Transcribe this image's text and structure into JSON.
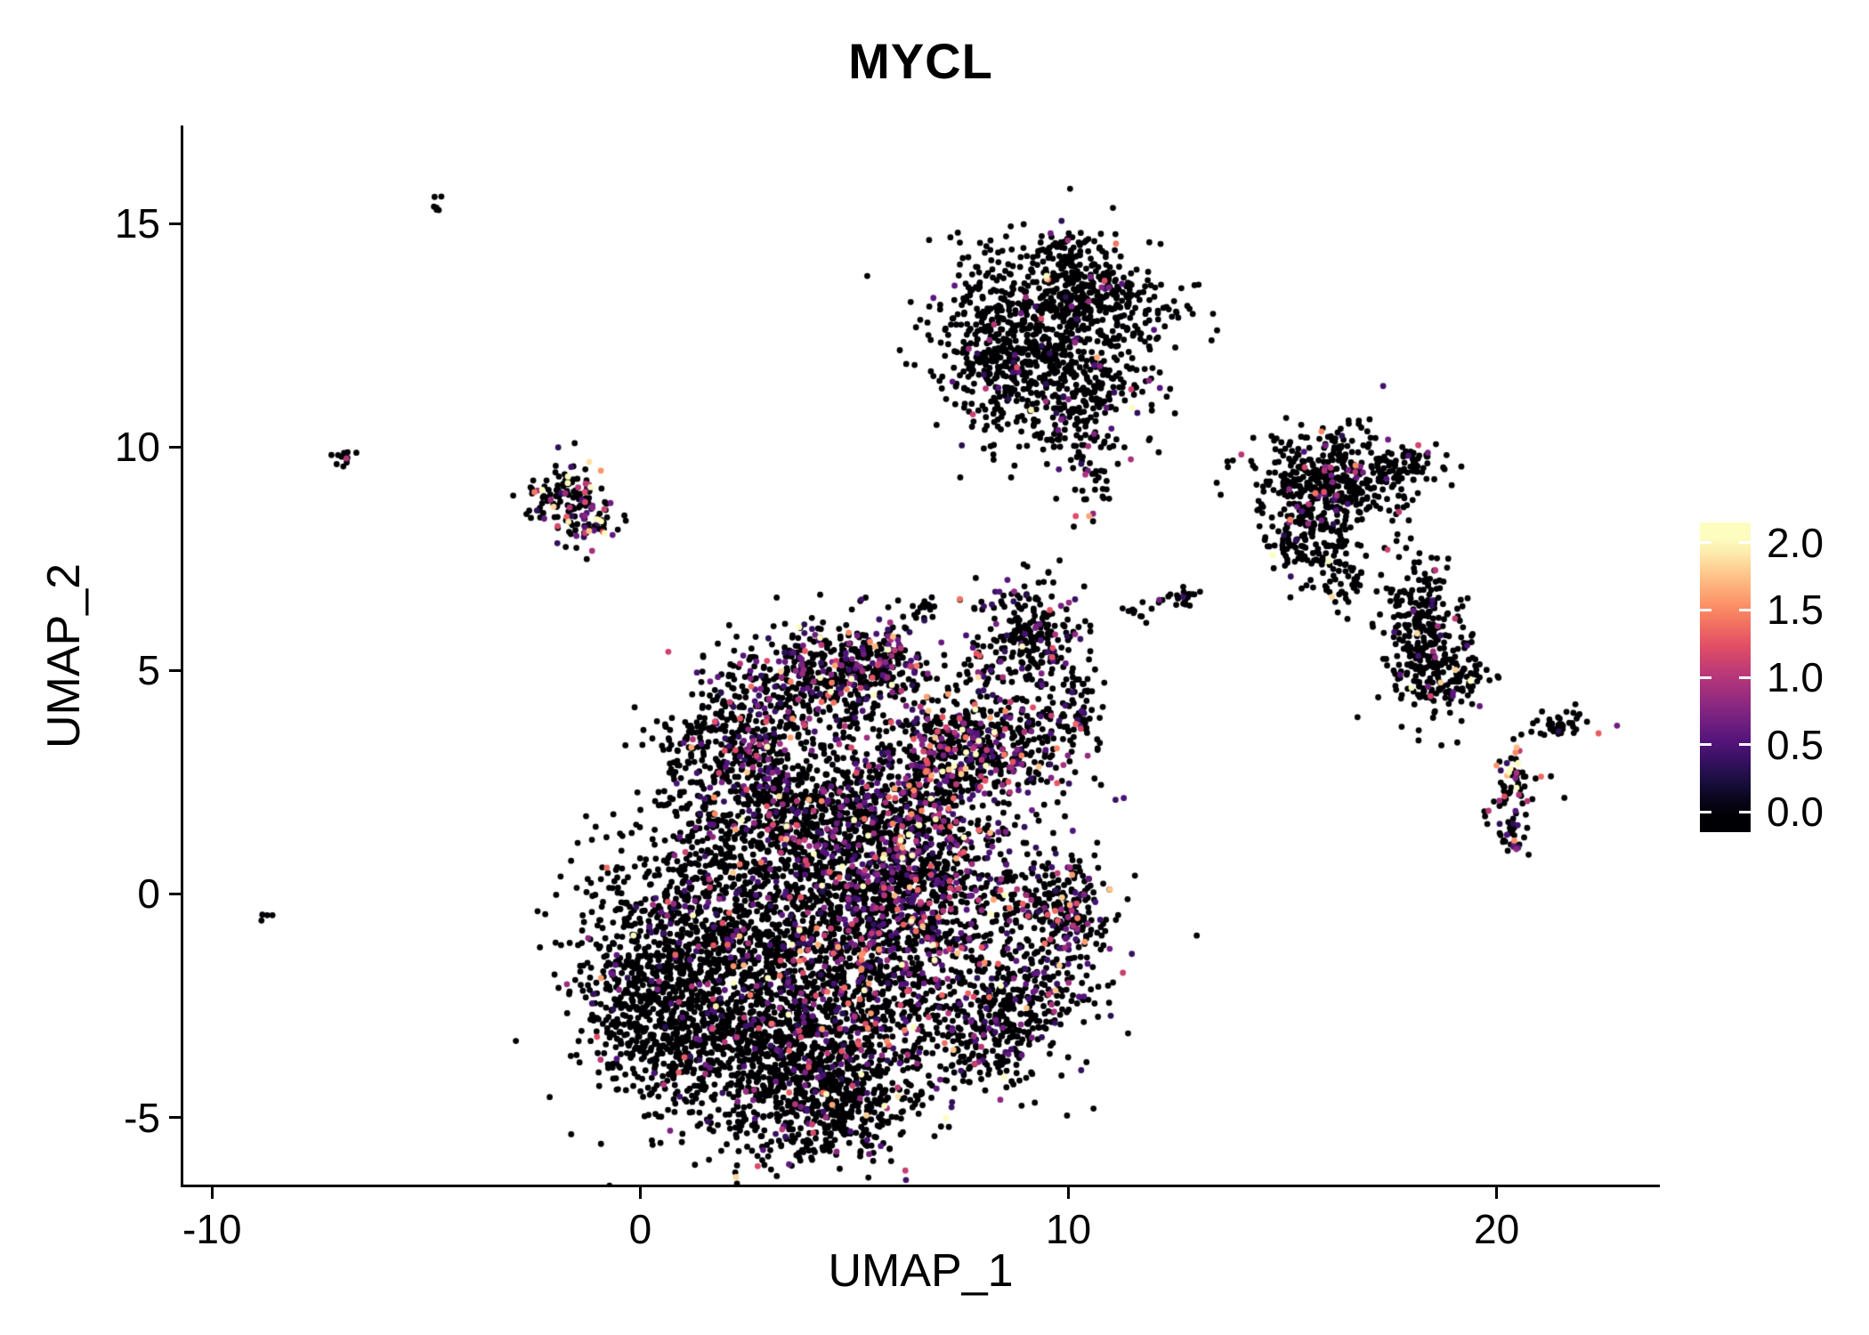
{
  "colors": {
    "background": "#ffffff",
    "axis": "#000000",
    "text": "#000000",
    "zero_expression_point": "#000004"
  },
  "chart_data": {
    "type": "scatter",
    "title": "MYCL",
    "xlabel": "UMAP_1",
    "ylabel": "UMAP_2",
    "xlim": [
      -10.65,
      23.75
    ],
    "ylim": [
      -6.5,
      17.15
    ],
    "xticks": [
      -10,
      0,
      10,
      20
    ],
    "xtick_labels": [
      "-10",
      "0",
      "10",
      "20"
    ],
    "yticks": [
      -5,
      0,
      5,
      10,
      15
    ],
    "ytick_labels": [
      "-5",
      "0",
      "5",
      "10",
      "15"
    ],
    "grid": false,
    "legend_position": "right",
    "point_radius": 3.4,
    "seed": 20,
    "colorbar": {
      "tick_labels": [
        "0.0",
        "0.5",
        "1.0",
        "1.5",
        "2.0"
      ],
      "tick_values": [
        0,
        0.5,
        1.0,
        1.5,
        2.0
      ],
      "bar_range": [
        -0.15,
        2.15
      ],
      "value_range": [
        0,
        2
      ],
      "colormap": "magma",
      "colormap_stops": [
        "#000004",
        "#1c1044",
        "#4f127b",
        "#812581",
        "#b5367a",
        "#e55064",
        "#fb8861",
        "#fec287",
        "#fcfdbf"
      ]
    },
    "cluster_fields": [
      "x_center",
      "y_center",
      "sd_x",
      "sd_y",
      "n_points",
      "frac_expressing",
      "expr_scale"
    ],
    "clusters": [
      [
        1.2,
        -1.3,
        1.3,
        1.5,
        850,
        0.06,
        0.45
      ],
      [
        0.3,
        -2.6,
        0.9,
        1.0,
        400,
        0.04,
        0.45
      ],
      [
        3.0,
        -3.6,
        1.3,
        1.0,
        650,
        0.1,
        0.5
      ],
      [
        4.6,
        -4.6,
        1.0,
        0.8,
        450,
        0.1,
        0.5
      ],
      [
        3.6,
        -1.0,
        1.5,
        1.5,
        850,
        0.16,
        0.5
      ],
      [
        5.6,
        -1.4,
        1.2,
        1.5,
        750,
        0.28,
        0.55
      ],
      [
        6.6,
        0.6,
        1.0,
        1.2,
        550,
        0.3,
        0.55
      ],
      [
        5.0,
        1.6,
        1.2,
        1.0,
        500,
        0.22,
        0.5
      ],
      [
        2.9,
        2.1,
        1.2,
        1.2,
        480,
        0.16,
        0.5
      ],
      [
        2.2,
        3.4,
        0.8,
        0.7,
        250,
        0.12,
        0.5
      ],
      [
        4.1,
        4.9,
        1.0,
        0.65,
        380,
        0.26,
        0.55
      ],
      [
        5.6,
        5.2,
        0.65,
        0.5,
        180,
        0.26,
        0.55
      ],
      [
        6.9,
        3.1,
        0.8,
        0.8,
        300,
        0.3,
        0.55
      ],
      [
        8.5,
        3.3,
        0.85,
        0.7,
        330,
        0.26,
        0.55
      ],
      [
        10.1,
        4.1,
        0.45,
        0.5,
        80,
        0.15,
        0.5
      ],
      [
        9.0,
        5.8,
        0.7,
        0.6,
        240,
        0.18,
        0.55
      ],
      [
        6.6,
        6.4,
        0.3,
        0.2,
        18,
        0.1,
        0.5
      ],
      [
        9.1,
        -1.4,
        0.9,
        1.2,
        400,
        0.22,
        0.5
      ],
      [
        9.9,
        -0.2,
        0.55,
        0.5,
        140,
        0.15,
        0.5
      ],
      [
        8.1,
        -3.1,
        0.8,
        0.7,
        240,
        0.15,
        0.5
      ],
      [
        9.5,
        12.8,
        1.25,
        0.85,
        650,
        0.04,
        0.5
      ],
      [
        8.4,
        11.6,
        0.6,
        0.8,
        200,
        0.06,
        0.55
      ],
      [
        10.3,
        11.1,
        0.8,
        0.7,
        230,
        0.05,
        0.5
      ],
      [
        10.9,
        13.5,
        0.65,
        0.5,
        140,
        0.04,
        0.5
      ],
      [
        9.9,
        14.3,
        0.35,
        0.4,
        60,
        0.03,
        0.5
      ],
      [
        10.6,
        9.3,
        0.3,
        0.7,
        45,
        0.05,
        0.5
      ],
      [
        -1.7,
        9.0,
        0.45,
        0.4,
        120,
        0.3,
        0.7
      ],
      [
        -1.2,
        8.3,
        0.28,
        0.25,
        55,
        0.55,
        0.8
      ],
      [
        -6.9,
        9.7,
        0.18,
        0.2,
        12,
        0.1,
        0.5
      ],
      [
        -4.8,
        15.4,
        0.12,
        0.1,
        6,
        0,
        0.5
      ],
      [
        -8.8,
        -0.5,
        0.1,
        0.08,
        4,
        0,
        0.5
      ],
      [
        16.2,
        9.3,
        0.95,
        0.6,
        430,
        0.06,
        0.5
      ],
      [
        15.6,
        8.1,
        0.4,
        0.55,
        110,
        0.08,
        0.5
      ],
      [
        17.9,
        9.6,
        0.35,
        0.2,
        50,
        0.12,
        0.6
      ],
      [
        16.4,
        7.0,
        0.3,
        0.4,
        55,
        0.05,
        0.5
      ],
      [
        15.1,
        7.7,
        0.25,
        0.25,
        18,
        0.05,
        0.5
      ],
      [
        18.3,
        5.8,
        0.5,
        0.85,
        290,
        0.06,
        0.5
      ],
      [
        18.9,
        4.8,
        0.5,
        0.3,
        80,
        0.05,
        0.5
      ],
      [
        20.4,
        2.5,
        0.28,
        0.5,
        70,
        0.3,
        0.7
      ],
      [
        20.3,
        1.2,
        0.18,
        0.18,
        25,
        0.2,
        0.6
      ],
      [
        21.5,
        3.8,
        0.4,
        0.18,
        40,
        0.06,
        0.5
      ],
      [
        12.6,
        6.6,
        0.35,
        0.12,
        25,
        0.05,
        0.5
      ],
      [
        11.6,
        6.3,
        0.18,
        0.1,
        10,
        0,
        0.5
      ]
    ]
  }
}
